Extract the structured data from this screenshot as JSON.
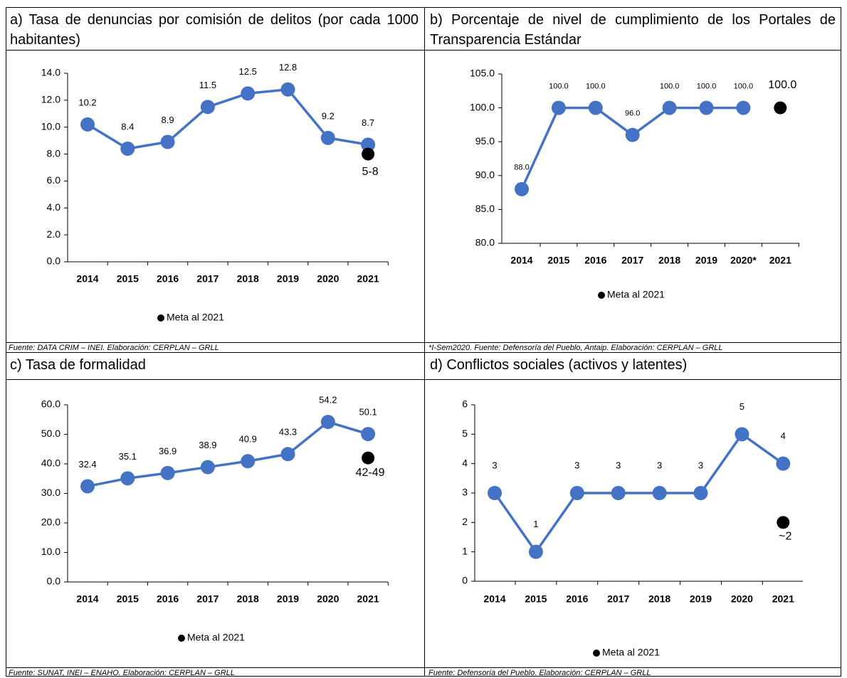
{
  "chart_data": [
    {
      "type": "line",
      "title": "a) Tasa de denuncias por comisión de delitos (por cada 1000 habitantes)",
      "source": "Fuente: DATA CRIM – INEI. Elaboración: CERPLAN – GRLL",
      "categories": [
        "2014",
        "2015",
        "2016",
        "2017",
        "2018",
        "2019",
        "2020",
        "2021"
      ],
      "series": [
        {
          "color": "#4472c4",
          "values": [
            10.2,
            8.4,
            8.9,
            11.5,
            12.5,
            12.8,
            9.2,
            8.7
          ]
        },
        {
          "name": "Meta al 2021",
          "color": "#000000",
          "values": [
            null,
            null,
            null,
            null,
            null,
            null,
            null,
            8
          ],
          "value_labels": [
            null,
            null,
            null,
            null,
            null,
            null,
            null,
            "5-8"
          ]
        }
      ],
      "ylim": [
        0,
        14
      ],
      "yticks": [
        {
          "value": 0,
          "label": "0.0"
        },
        {
          "value": 2,
          "label": "2.0"
        },
        {
          "value": 4,
          "label": "4.0"
        },
        {
          "value": 6,
          "label": "6.0"
        },
        {
          "value": 8,
          "label": "8.0"
        },
        {
          "value": 10,
          "label": "10.0"
        },
        {
          "value": 12,
          "label": "12.0"
        },
        {
          "value": 14,
          "label": "14.0"
        }
      ]
    },
    {
      "type": "line",
      "title": "b) Porcentaje de nivel de cumplimiento de los Portales de Transparencia Estándar",
      "source": "*I-Sem2020. Fuente: Defensoría del Pueblo, Antaip. Elaboración: CERPLAN – GRLL",
      "categories": [
        "2014",
        "2015",
        "2016",
        "2017",
        "2018",
        "2019",
        "2020*",
        "2021"
      ],
      "series": [
        {
          "color": "#4472c4",
          "values": [
            88,
            100,
            100,
            96,
            100,
            100,
            100,
            null
          ],
          "value_labels": [
            "88.0",
            "100.0",
            "100.0",
            "96.0",
            "100.0",
            "100.0",
            "100.0",
            null
          ]
        },
        {
          "name": "Meta al 2021",
          "color": "#000000",
          "values": [
            null,
            null,
            null,
            null,
            null,
            null,
            null,
            100
          ],
          "value_labels": [
            null,
            null,
            null,
            null,
            null,
            null,
            null,
            "100.0"
          ]
        }
      ],
      "ylim": [
        80,
        105
      ],
      "yticks": [
        {
          "value": 80,
          "label": "80.0"
        },
        {
          "value": 85,
          "label": "85.0"
        },
        {
          "value": 90,
          "label": "90.0"
        },
        {
          "value": 95,
          "label": "95.0"
        },
        {
          "value": 100,
          "label": "100.0"
        },
        {
          "value": 105,
          "label": "105.0"
        }
      ]
    },
    {
      "type": "line",
      "title": "c) Tasa de formalidad",
      "source": "Fuente: SUNAT, INEI – ENAHO. Elaboración: CERPLAN – GRLL",
      "categories": [
        "2014",
        "2015",
        "2016",
        "2017",
        "2018",
        "2019",
        "2020",
        "2021"
      ],
      "series": [
        {
          "color": "#4472c4",
          "values": [
            32.4,
            35.1,
            36.9,
            38.9,
            40.9,
            43.3,
            54.2,
            50.1
          ]
        },
        {
          "name": "Meta al 2021",
          "color": "#000000",
          "values": [
            null,
            null,
            null,
            null,
            null,
            null,
            null,
            42
          ],
          "value_labels": [
            null,
            null,
            null,
            null,
            null,
            null,
            null,
            "42-49"
          ]
        }
      ],
      "ylim": [
        0,
        60
      ],
      "yticks": [
        {
          "value": 0,
          "label": "0.0"
        },
        {
          "value": 10,
          "label": "10.0"
        },
        {
          "value": 20,
          "label": "20.0"
        },
        {
          "value": 30,
          "label": "30.0"
        },
        {
          "value": 40,
          "label": "40.0"
        },
        {
          "value": 50,
          "label": "50.0"
        },
        {
          "value": 60,
          "label": "60.0"
        }
      ]
    },
    {
      "type": "line",
      "title": "d) Conflictos sociales (activos y latentes)",
      "source": "Fuente: Defensoría del Pueblo. Elaboración: CERPLAN – GRLL",
      "categories": [
        "2014",
        "2015",
        "2016",
        "2017",
        "2018",
        "2019",
        "2020",
        "2021"
      ],
      "series": [
        {
          "color": "#4472c4",
          "values": [
            3,
            1,
            3,
            3,
            3,
            3,
            5,
            4
          ]
        },
        {
          "name": "Meta al 2021",
          "color": "#000000",
          "values": [
            null,
            null,
            null,
            null,
            null,
            null,
            null,
            2
          ],
          "value_labels": [
            null,
            null,
            null,
            null,
            null,
            null,
            null,
            "~2"
          ]
        }
      ],
      "ylim": [
        0,
        6
      ],
      "yticks": [
        0,
        1,
        2,
        3,
        4,
        5,
        6
      ]
    }
  ]
}
